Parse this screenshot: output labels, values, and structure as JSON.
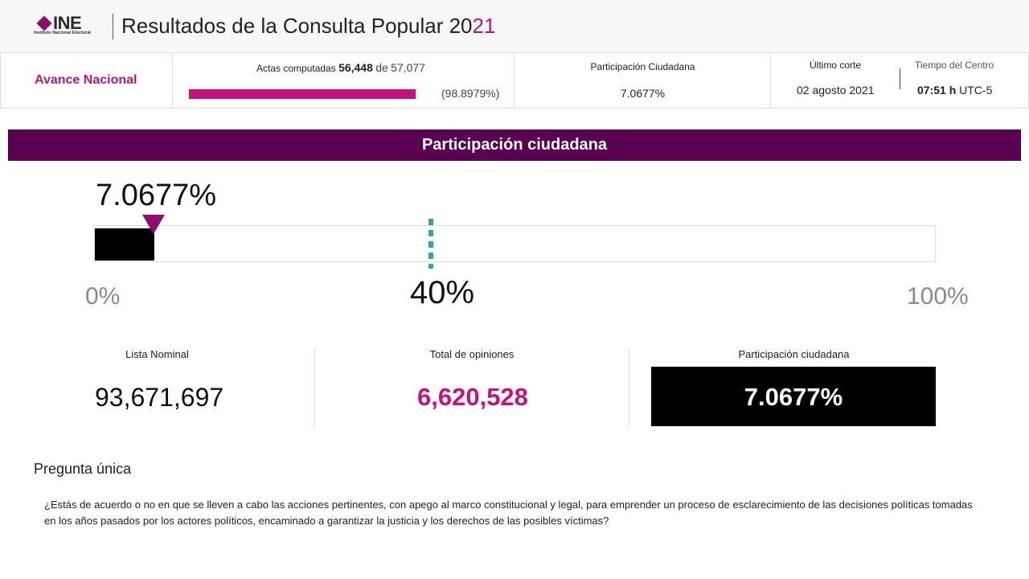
{
  "header": {
    "logo_text": "INE",
    "logo_subtext": "Instituto Nacional Electoral",
    "title_main": "Resultados de la Consulta Popular 20",
    "title_accent": "21",
    "brand_color": "#b5177f"
  },
  "strip": {
    "avance_label": "Avance Nacional",
    "actas_label": "Actas computadas",
    "actas_count": "56,448",
    "actas_of": "de",
    "actas_total": "57,077",
    "actas_percent": "(98.8979%)",
    "actas_progress": 0.988979,
    "participacion_label": "Participación Ciudadana",
    "participacion_value": "7.0677%",
    "corte_label": "Último corte",
    "corte_date": "02 agosto 2021",
    "tiempo_label": "Tiempo del Centro",
    "tiempo_time": "07:51 h",
    "tiempo_zone": "UTC-5"
  },
  "banner": {
    "title": "Participación ciudadana",
    "color": "#5a0050"
  },
  "gauge": {
    "value_label": "7.0677%",
    "value": 7.0677,
    "threshold": 40,
    "threshold_color": "#2fa8a4",
    "tick_min": "0%",
    "tick_threshold": "40%",
    "tick_max": "100%"
  },
  "stats": {
    "lista_label": "Lista Nominal",
    "lista_value": "93,671,697",
    "total_label": "Total de opiniones",
    "total_value": "6,620,528",
    "part_label": "Participación ciudadana",
    "part_value": "7.0677%"
  },
  "pregunta": {
    "title": "Pregunta única",
    "text": "¿Estás de acuerdo o no en que se lleven a cabo las acciones pertinentes, con apego al marco constitucional y legal, para emprender un proceso de esclarecimiento de las decisiones políticas tomadas en los años pasados por los actores políticos, encaminado a garantizar la justicia y los derechos de las posibles víctimas?"
  }
}
